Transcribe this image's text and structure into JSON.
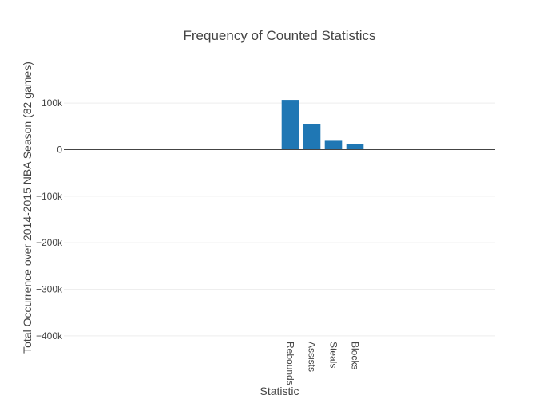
{
  "chart_data": {
    "type": "bar",
    "title": "Frequency of Counted Statistics",
    "xlabel": "Statistic",
    "ylabel": "Total Occurrence over 2014-2015 NBA Season (82 games)",
    "categories": [
      "Rebounds",
      "Assists",
      "Steals",
      "Blocks"
    ],
    "values": [
      107000,
      54000,
      19000,
      12000
    ],
    "ylim": [
      -400000,
      100000
    ],
    "yticks": [
      {
        "value": 100000,
        "label": "100k"
      },
      {
        "value": 0,
        "label": "0"
      },
      {
        "value": -100000,
        "label": "−100k"
      },
      {
        "value": -200000,
        "label": "−200k"
      },
      {
        "value": -300000,
        "label": "−300k"
      },
      {
        "value": -400000,
        "label": "−400k"
      }
    ],
    "grid": true,
    "legend": "none",
    "bar_color": "#1f77b4"
  }
}
